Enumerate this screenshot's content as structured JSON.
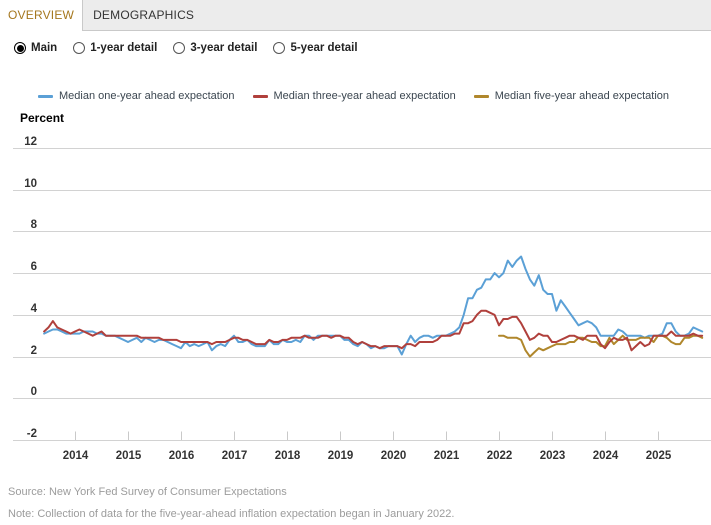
{
  "tabs": [
    {
      "label": "OVERVIEW",
      "active": true
    },
    {
      "label": "DEMOGRAPHICS",
      "active": false
    }
  ],
  "radios": [
    {
      "label": "Main",
      "selected": true
    },
    {
      "label": "1-year detail",
      "selected": false
    },
    {
      "label": "3-year detail",
      "selected": false
    },
    {
      "label": "5-year detail",
      "selected": false
    }
  ],
  "colors": {
    "one_year": "#5ba0d6",
    "three_year": "#b0403c",
    "five_year": "#b0872c",
    "active_tab_text": "#a5771e",
    "grid": "#d2d2d2",
    "axis_text": "#333333",
    "legend_text": "#3b4650",
    "footer_text": "#9c9c9c"
  },
  "chart_data": {
    "type": "line",
    "ylabel": "Percent",
    "ylim": [
      -2,
      12
    ],
    "yticks": [
      12,
      10,
      8,
      6,
      4,
      2,
      0,
      -2
    ],
    "xticks": [
      2014,
      2015,
      2016,
      2017,
      2018,
      2019,
      2020,
      2021,
      2022,
      2023,
      2024,
      2025
    ],
    "frequency": "monthly",
    "grid": true,
    "legend_position": "top",
    "series": [
      {
        "name": "Median one-year ahead expectation",
        "color_key": "one_year",
        "start": "2013-06",
        "values": [
          3.1,
          3.2,
          3.3,
          3.3,
          3.2,
          3.1,
          3.1,
          3.1,
          3.1,
          3.2,
          3.2,
          3.2,
          3.1,
          3.1,
          3.0,
          3.0,
          3.0,
          2.9,
          2.8,
          2.7,
          2.8,
          2.9,
          2.7,
          2.9,
          2.8,
          2.7,
          2.8,
          2.8,
          2.7,
          2.6,
          2.5,
          2.4,
          2.7,
          2.5,
          2.6,
          2.5,
          2.6,
          2.7,
          2.3,
          2.5,
          2.6,
          2.5,
          2.8,
          3.0,
          2.7,
          2.7,
          2.8,
          2.6,
          2.5,
          2.5,
          2.5,
          2.8,
          2.6,
          2.6,
          2.8,
          2.7,
          2.7,
          2.8,
          2.7,
          3.0,
          3.0,
          2.8,
          3.0,
          3.0,
          3.0,
          3.0,
          3.0,
          3.0,
          2.8,
          2.8,
          2.6,
          2.5,
          2.7,
          2.6,
          2.4,
          2.5,
          2.4,
          2.4,
          2.5,
          2.5,
          2.5,
          2.1,
          2.6,
          3.0,
          2.7,
          2.9,
          3.0,
          3.0,
          2.9,
          3.0,
          3.0,
          3.0,
          3.1,
          3.2,
          3.4,
          4.0,
          4.8,
          4.8,
          5.2,
          5.3,
          5.7,
          5.7,
          6.0,
          5.8,
          6.0,
          6.6,
          6.3,
          6.6,
          6.8,
          6.2,
          5.7,
          5.4,
          5.9,
          5.2,
          5.0,
          5.0,
          4.2,
          4.7,
          4.4,
          4.1,
          3.8,
          3.5,
          3.6,
          3.7,
          3.6,
          3.4,
          3.0,
          3.0,
          3.0,
          3.0,
          3.3,
          3.2,
          3.0,
          3.0,
          3.0,
          3.0,
          2.9,
          3.0,
          3.0,
          3.0,
          3.1,
          3.6,
          3.6,
          3.2,
          3.0,
          3.0,
          3.1,
          3.4,
          3.3,
          3.2
        ]
      },
      {
        "name": "Median three-year ahead expectation",
        "color_key": "three_year",
        "start": "2013-06",
        "values": [
          3.2,
          3.4,
          3.7,
          3.4,
          3.3,
          3.2,
          3.1,
          3.2,
          3.3,
          3.2,
          3.1,
          3.0,
          3.1,
          3.2,
          3.0,
          3.0,
          3.0,
          3.0,
          3.0,
          3.0,
          3.0,
          3.0,
          2.9,
          2.9,
          2.9,
          2.9,
          2.9,
          2.8,
          2.8,
          2.8,
          2.8,
          2.7,
          2.7,
          2.7,
          2.7,
          2.7,
          2.7,
          2.7,
          2.6,
          2.7,
          2.7,
          2.7,
          2.8,
          2.9,
          2.9,
          2.8,
          2.8,
          2.7,
          2.6,
          2.6,
          2.6,
          2.8,
          2.7,
          2.7,
          2.8,
          2.8,
          2.9,
          2.9,
          2.9,
          3.0,
          2.9,
          2.9,
          2.9,
          3.0,
          3.0,
          2.9,
          3.0,
          3.0,
          2.9,
          2.9,
          2.7,
          2.6,
          2.7,
          2.6,
          2.5,
          2.5,
          2.4,
          2.5,
          2.5,
          2.5,
          2.5,
          2.4,
          2.6,
          2.6,
          2.5,
          2.7,
          2.7,
          2.7,
          2.7,
          2.8,
          3.0,
          3.0,
          3.0,
          3.1,
          3.1,
          3.6,
          3.6,
          3.7,
          4.0,
          4.2,
          4.2,
          4.1,
          4.0,
          3.5,
          3.8,
          3.8,
          3.9,
          3.9,
          3.6,
          3.2,
          2.8,
          2.9,
          3.1,
          3.0,
          3.0,
          2.7,
          2.7,
          2.8,
          2.9,
          3.0,
          3.0,
          2.9,
          2.8,
          3.0,
          3.0,
          3.0,
          2.6,
          2.4,
          2.7,
          2.9,
          2.8,
          2.8,
          2.9,
          2.3,
          2.5,
          2.7,
          2.5,
          2.6,
          3.0,
          3.0,
          3.0,
          3.0,
          3.2,
          3.0,
          3.0,
          3.0,
          3.0,
          3.1,
          3.0,
          3.0
        ]
      },
      {
        "name": "Median five-year ahead expectation",
        "color_key": "five_year",
        "start": "2022-01",
        "values": [
          3.0,
          3.0,
          2.9,
          2.9,
          2.9,
          2.8,
          2.3,
          2.0,
          2.2,
          2.4,
          2.3,
          2.4,
          2.5,
          2.6,
          2.6,
          2.6,
          2.7,
          2.7,
          2.9,
          2.9,
          2.8,
          2.7,
          2.7,
          2.5,
          2.5,
          2.9,
          2.6,
          2.8,
          3.0,
          2.8,
          2.8,
          2.8,
          2.9,
          2.9,
          2.9,
          2.7,
          3.0,
          3.0,
          2.9,
          2.7,
          2.6,
          2.6,
          2.9,
          2.9,
          3.0,
          3.0,
          2.9
        ]
      }
    ]
  },
  "footer": {
    "source": "Source: New York Fed Survey of Consumer Expectations",
    "note": "Note: Collection of data for the five-year-ahead inflation expectation began in January 2022."
  }
}
